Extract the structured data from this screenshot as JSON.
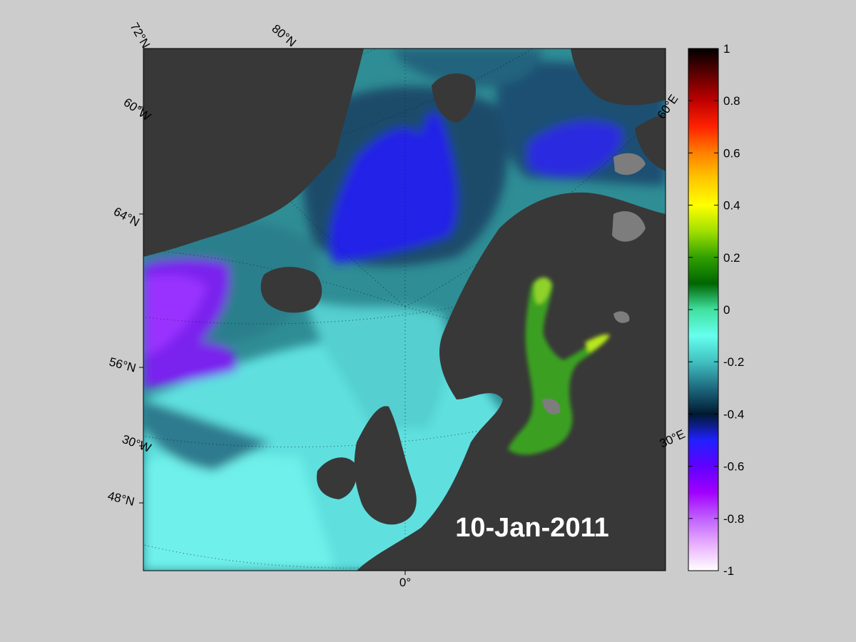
{
  "map": {
    "date_label": "10-Jan-2011",
    "bottom_label": "0°",
    "latitude_labels": [
      {
        "text": "72°N"
      },
      {
        "text": "80°N"
      },
      {
        "text": "60°W"
      },
      {
        "text": "64°N"
      },
      {
        "text": "56°N"
      },
      {
        "text": "30°W"
      },
      {
        "text": "48°N"
      },
      {
        "text": "60°E"
      },
      {
        "text": "30°E"
      }
    ],
    "colors": {
      "background": "#cccccc",
      "land": "#383838",
      "frozen_land": "#7d7d7d"
    }
  },
  "colorbar": {
    "range": [
      -1,
      1
    ],
    "ticks": [
      "1",
      "0.8",
      "0.6",
      "0.4",
      "0.2",
      "0",
      "-0.2",
      "-0.4",
      "-0.6",
      "-0.8",
      "-1"
    ]
  }
}
